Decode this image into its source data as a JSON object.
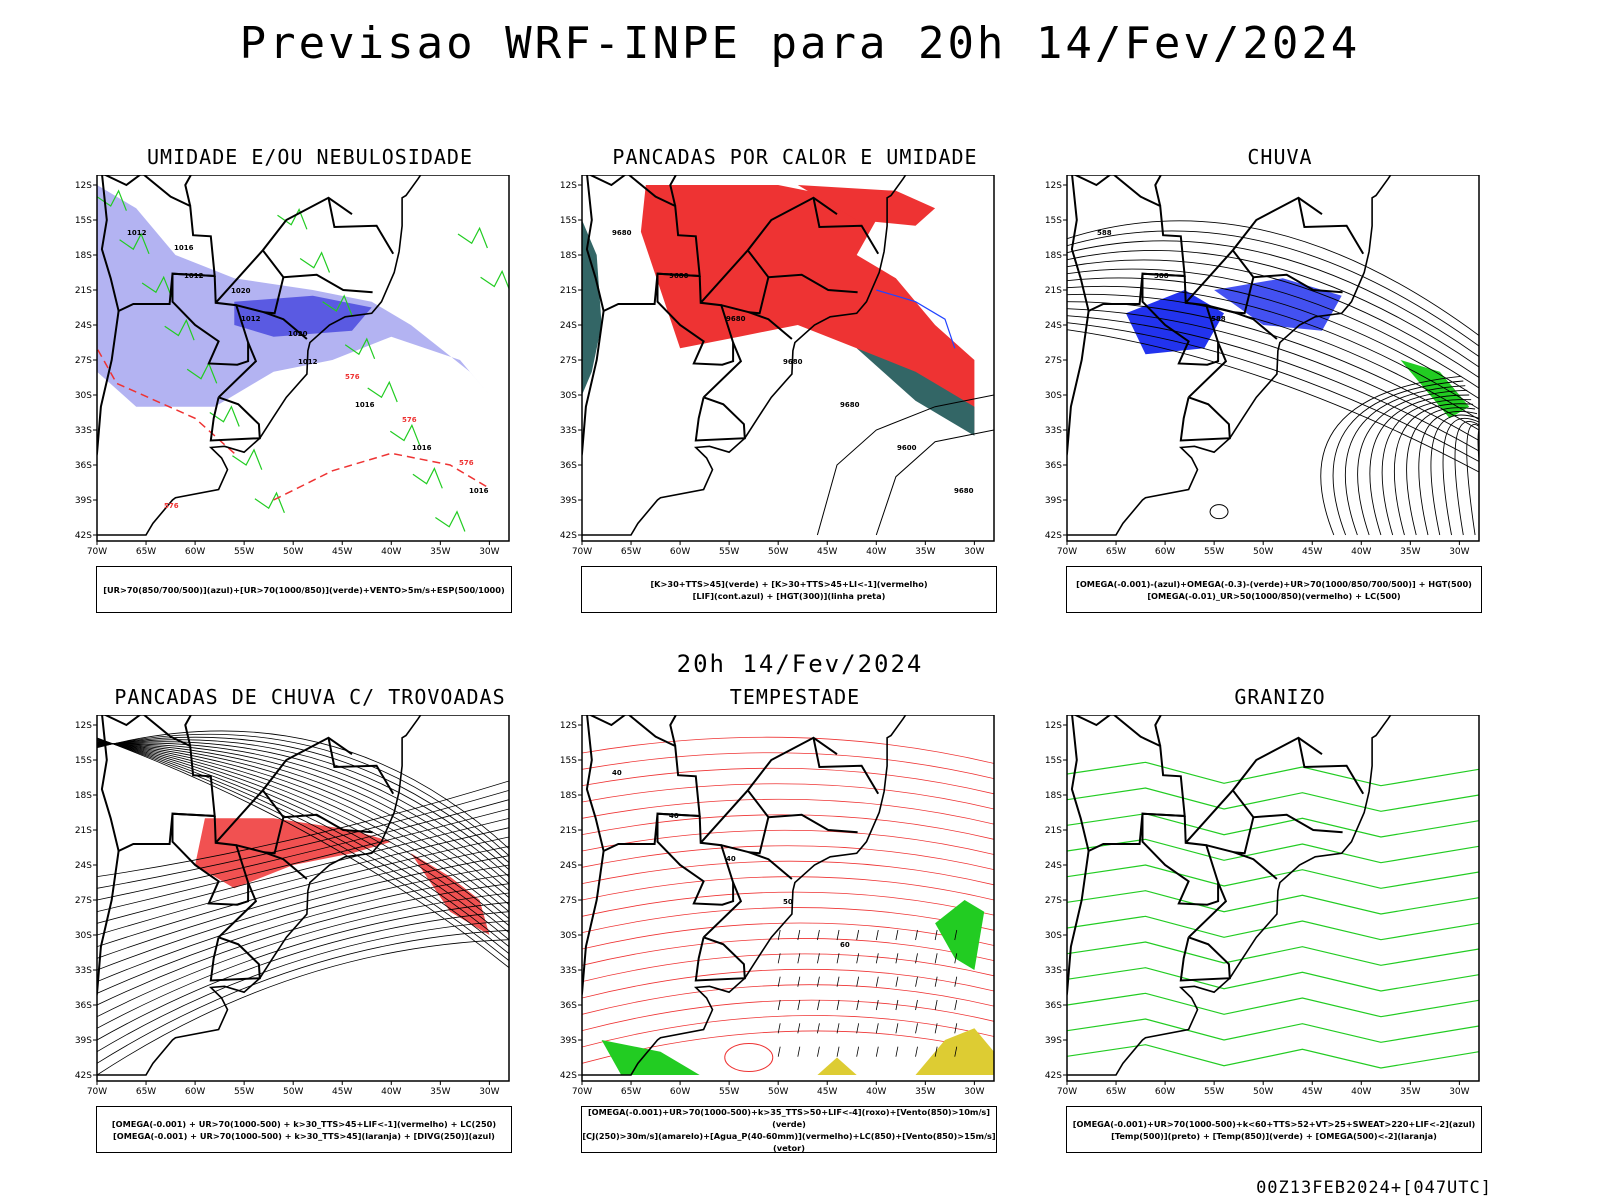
{
  "page_title": "Previsao WRF-INPE  para 20h 14/Fev/2024",
  "mid_title": "20h 14/Fev/2024",
  "footer_code": "00Z13FEB2024+[047UTC]",
  "axes": {
    "lat_ticks": [
      "12S",
      "15S",
      "18S",
      "21S",
      "24S",
      "27S",
      "30S",
      "33S",
      "36S",
      "39S",
      "42S"
    ],
    "lon_ticks": [
      "70W",
      "65W",
      "60W",
      "55W",
      "50W",
      "45W",
      "40W",
      "35W",
      "30W"
    ]
  },
  "colors": {
    "blue_fill": "#9999ee",
    "blue_dark": "#4444dd",
    "green": "#22cc22",
    "red": "#ee3333",
    "dark_teal": "#336666",
    "blue_line": "#2244ff",
    "orange": "#ff8800",
    "yellow": "#ddcc33"
  },
  "panels": [
    {
      "title": "UMIDADE E/OU NEBULOSIDADE",
      "legend": [
        "[UR>70(850/700/500)](azul)+[UR>70(1000/850)](verde)+VENTO>5m/s+ESP(500/1000)"
      ],
      "labels": [
        "1012",
        "1012",
        "1012",
        "1012",
        "1016",
        "1016",
        "1016",
        "1016",
        "1020",
        "1020",
        "576",
        "576",
        "576",
        "576"
      ]
    },
    {
      "title": "PANCADAS POR CALOR E UMIDADE",
      "legend": [
        "[K>30+TTS>45](verde)  +  [K>30+TTS>45+LI<-1](vermelho)",
        "[LIF](cont.azul)  +  [HGT(300)](linha preta)"
      ],
      "labels": [
        "9680",
        "9680",
        "9680",
        "9680",
        "9680",
        "9600",
        "9680"
      ]
    },
    {
      "title": "CHUVA",
      "legend": [
        "[OMEGA(-0.001)-(azul)+OMEGA(-0.3)-(verde)+UR>70(1000/850/700/500)]  +  HGT(500)",
        "[OMEGA(-0.01)_UR>50(1000/850)(vermelho)  +  LC(500)"
      ],
      "labels": [
        "588",
        "588",
        "588"
      ]
    },
    {
      "title": "PANCADAS DE CHUVA C/ TROVOADAS",
      "legend": [
        "[OMEGA(-0.001)  +  UR>70(1000-500)  +  k>30_TTS>45+LIF<-1](vermelho)  +  LC(250)",
        "[OMEGA(-0.001)  +  UR>70(1000-500)  +  k>30_TTS>45](laranja)  +  [DIVG(250)](azul)"
      ],
      "labels": []
    },
    {
      "title": "TEMPESTADE",
      "legend": [
        "[OMEGA(-0.001)+UR>70(1000-500)+k>35_TTS>50+LIF<-4](roxo)+[Vento(850)>10m/s](verde)",
        "[CJ(250)>30m/s](amarelo)+[Agua_P(40-60mm)](vermelho)+LC(850)+[Vento(850)>15m/s](vetor)"
      ],
      "labels": [
        "40",
        "40",
        "40",
        "50",
        "60"
      ]
    },
    {
      "title": "GRANIZO",
      "legend": [
        "[OMEGA(-0.001)+UR>70(1000-500)+k<60+TTS>52+VT>25+SWEAT>220+LIF<-2](azul)",
        "[Temp(500)](preto)  +  [Temp(850)](verde)  +  [OMEGA(500)<-2](laranja)"
      ],
      "labels": []
    }
  ]
}
